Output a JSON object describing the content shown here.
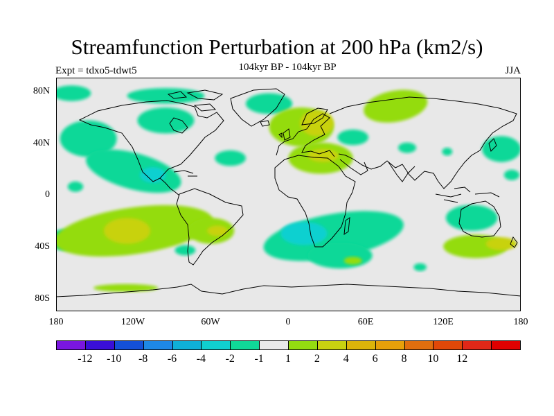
{
  "title": "Streamfunction Perturbation at 200 hPa (km2/s)",
  "subtitle": "104kyr BP - 104kyr BP",
  "left_string": "Expt = tdxo5-tdwt5",
  "right_string": "JJA",
  "map": {
    "projection": "cylindrical-equidistant",
    "lon_range": [
      -180,
      180
    ],
    "lat_range": [
      -90,
      90
    ],
    "background_color": "#e8e8e8",
    "lat_ticks": [
      "80N",
      "40N",
      "0",
      "40S",
      "80S"
    ],
    "lon_ticks": [
      "180",
      "120W",
      "60W",
      "0",
      "60E",
      "120E",
      "180"
    ]
  },
  "legend": {
    "colors": [
      "#7a16e0",
      "#3a0fd8",
      "#1450d8",
      "#1e88e6",
      "#0fb0d8",
      "#10d0d0",
      "#10d898",
      "#e8e8e8",
      "#94dc10",
      "#c8d210",
      "#dcb40a",
      "#e6a00a",
      "#e06e0e",
      "#e04808",
      "#e02818",
      "#e00000"
    ],
    "labels": [
      "-12",
      "-10",
      "-8",
      "-6",
      "-4",
      "-2",
      "-1",
      "1",
      "2",
      "4",
      "6",
      "8",
      "10",
      "12"
    ]
  },
  "anomaly_fields": [
    {
      "level": "-1",
      "color": "#10d898",
      "cx": -168,
      "cy": 78,
      "rx": 15,
      "ry": 6,
      "rot": 0
    },
    {
      "level": "-1",
      "color": "#10d898",
      "cx": -95,
      "cy": 57,
      "rx": 22,
      "ry": 10,
      "rot": 0
    },
    {
      "level": "-1",
      "color": "#10d898",
      "cx": -15,
      "cy": 70,
      "rx": 18,
      "ry": 8,
      "rot": 0
    },
    {
      "level": "-1",
      "color": "#10d898",
      "cx": -155,
      "cy": 43,
      "rx": 22,
      "ry": 14,
      "rot": 0
    },
    {
      "level": "-1",
      "color": "#10d898",
      "cx": -120,
      "cy": 18,
      "rx": 38,
      "ry": 14,
      "rot": 15
    },
    {
      "level": "-2",
      "color": "#10d0d0",
      "cx": -105,
      "cy": 15,
      "rx": 10,
      "ry": 6,
      "rot": 0
    },
    {
      "level": "-1",
      "color": "#10d898",
      "cx": -165,
      "cy": 6,
      "rx": 6,
      "ry": 4,
      "rot": 0
    },
    {
      "level": "-1",
      "color": "#10d898",
      "cx": -45,
      "cy": 28,
      "rx": 12,
      "ry": 6,
      "rot": 0
    },
    {
      "level": "-1",
      "color": "#10d898",
      "cx": 35,
      "cy": -32,
      "rx": 55,
      "ry": 17,
      "rot": -10
    },
    {
      "level": "-2",
      "color": "#10d0d0",
      "cx": 12,
      "cy": -30,
      "rx": 18,
      "ry": 9,
      "rot": 0
    },
    {
      "level": "-1",
      "color": "#10d898",
      "cx": 40,
      "cy": -47,
      "rx": 25,
      "ry": 10,
      "rot": 0
    },
    {
      "level": "-1",
      "color": "#10d898",
      "cx": 102,
      "cy": -56,
      "rx": 5,
      "ry": 3,
      "rot": 0
    },
    {
      "level": "-1",
      "color": "#10d898",
      "cx": 50,
      "cy": 44,
      "rx": 12,
      "ry": 6,
      "rot": 0
    },
    {
      "level": "-1",
      "color": "#10d898",
      "cx": 92,
      "cy": 36,
      "rx": 7,
      "ry": 4,
      "rot": 0
    },
    {
      "level": "-1",
      "color": "#10d898",
      "cx": 165,
      "cy": 35,
      "rx": 15,
      "ry": 10,
      "rot": 0
    },
    {
      "level": "-1",
      "color": "#10d898",
      "cx": 173,
      "cy": 15,
      "rx": 6,
      "ry": 4,
      "rot": 0
    },
    {
      "level": "-1",
      "color": "#10d898",
      "cx": 142,
      "cy": -18,
      "rx": 20,
      "ry": 10,
      "rot": 0
    },
    {
      "level": "-1",
      "color": "#10d898",
      "cx": -175,
      "cy": -35,
      "rx": 10,
      "ry": 8,
      "rot": 0
    },
    {
      "level": "-1",
      "color": "#10d898",
      "cx": -80,
      "cy": -43,
      "rx": 8,
      "ry": 4,
      "rot": 0
    },
    {
      "level": "-1",
      "color": "#10d898",
      "cx": 123,
      "cy": 33,
      "rx": 4,
      "ry": 3,
      "rot": 0
    },
    {
      "level": "-1",
      "color": "#10d898",
      "cx": -95,
      "cy": 76,
      "rx": 30,
      "ry": 6,
      "rot": 0
    },
    {
      "level": "1",
      "color": "#94dc10",
      "cx": -120,
      "cy": -28,
      "rx": 62,
      "ry": 18,
      "rot": -8
    },
    {
      "level": "1",
      "color": "#94dc10",
      "cx": -60,
      "cy": -28,
      "rx": 18,
      "ry": 10,
      "rot": 0
    },
    {
      "level": "1",
      "color": "#94dc10",
      "cx": 10,
      "cy": 52,
      "rx": 25,
      "ry": 15,
      "rot": 0
    },
    {
      "level": "1",
      "color": "#94dc10",
      "cx": 25,
      "cy": 28,
      "rx": 25,
      "ry": 12,
      "rot": 0
    },
    {
      "level": "1",
      "color": "#94dc10",
      "cx": 83,
      "cy": 68,
      "rx": 25,
      "ry": 12,
      "rot": -10
    },
    {
      "level": "1",
      "color": "#94dc10",
      "cx": 145,
      "cy": -40,
      "rx": 25,
      "ry": 9,
      "rot": 0
    },
    {
      "level": "1",
      "color": "#94dc10",
      "cx": 50,
      "cy": -51,
      "rx": 7,
      "ry": 3,
      "rot": 0
    },
    {
      "level": "1",
      "color": "#94dc10",
      "cx": -126,
      "cy": -72,
      "rx": 25,
      "ry": 3,
      "rot": 0
    },
    {
      "level": "2",
      "color": "#c8d210",
      "cx": -125,
      "cy": -28,
      "rx": 18,
      "ry": 10,
      "rot": 0
    },
    {
      "level": "2",
      "color": "#c8d210",
      "cx": -55,
      "cy": -28,
      "rx": 8,
      "ry": 4,
      "rot": 0
    },
    {
      "level": "2",
      "color": "#c8d210",
      "cx": 22,
      "cy": 55,
      "rx": 13,
      "ry": 10,
      "rot": 0
    },
    {
      "level": "2",
      "color": "#c8d210",
      "cx": 27,
      "cy": 30,
      "rx": 12,
      "ry": 5,
      "rot": 0
    },
    {
      "level": "2",
      "color": "#c8d210",
      "cx": 165,
      "cy": -38,
      "rx": 12,
      "ry": 5,
      "rot": 0
    }
  ]
}
